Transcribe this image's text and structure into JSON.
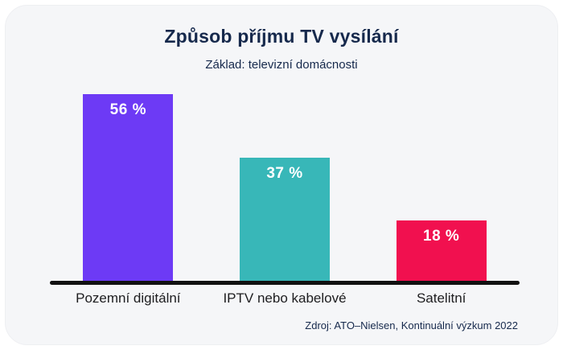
{
  "card": {
    "title": "Způsob příjmu TV vysílání",
    "subtitle": "Základ: televizní domácnosti",
    "source": "Zdroj: ATO–Nielsen, Kontinuální výzkum 2022"
  },
  "theme": {
    "card_background": "#f5f6f8",
    "title_color": "#16294c",
    "category_label_color": "#1d1d1f",
    "value_label_color": "#ffffff",
    "axis_line_color": "#111111"
  },
  "chart_data": {
    "type": "bar",
    "title": "Způsob příjmu TV vysílání",
    "subtitle": "Základ: televizní domácnosti",
    "categories": [
      "Pozemní digitální",
      "IPTV nebo kabelové",
      "Satelitní"
    ],
    "values": [
      56,
      37,
      18
    ],
    "value_labels": [
      "56 %",
      "37 %",
      "18 %"
    ],
    "unit": "%",
    "colors": [
      "#6d3af5",
      "#38b7b8",
      "#f1104f"
    ],
    "xlabel": "",
    "ylabel": "",
    "ylim": [
      0,
      60
    ],
    "grid": false,
    "legend": false,
    "value_labels_position": "inside-top",
    "source": "Zdroj: ATO–Nielsen, Kontinuální výzkum 2022"
  }
}
